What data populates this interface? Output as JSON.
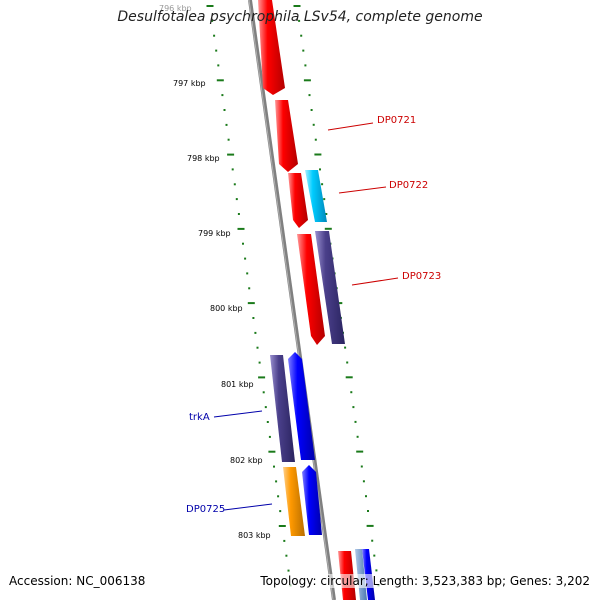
{
  "title": "Desulfotalea psychrophila LSv54, complete genome",
  "accession": "Accession: NC_006138",
  "topology": "Topology: circular; Length: 3,523,383 bp; Genes: 3,202",
  "ticks": [
    {
      "label": "796 kbp"
    },
    {
      "label": "797 kbp"
    },
    {
      "label": "798 kbp"
    },
    {
      "label": "799 kbp"
    },
    {
      "label": "800 kbp"
    },
    {
      "label": "801 kbp"
    },
    {
      "label": "802 kbp"
    },
    {
      "label": "803 kbp"
    }
  ],
  "genes": [
    {
      "label": "DP0721",
      "color": "#cc0000"
    },
    {
      "label": "DP0722",
      "color": "#cc0000"
    },
    {
      "label": "DP0723",
      "color": "#cc0000"
    },
    {
      "label": "trkA",
      "color": "#0000aa"
    },
    {
      "label": "DP0725",
      "color": "#0000aa"
    }
  ],
  "colors": {
    "backbone": "#808080",
    "tick_marks": "#1a7a1a",
    "red_feature": "#ff0000",
    "cyan_feature": "#00ccff",
    "purple_feature": "#4a3f8a",
    "blue_feature": "#0000ff",
    "orange_feature": "#ff9900"
  }
}
